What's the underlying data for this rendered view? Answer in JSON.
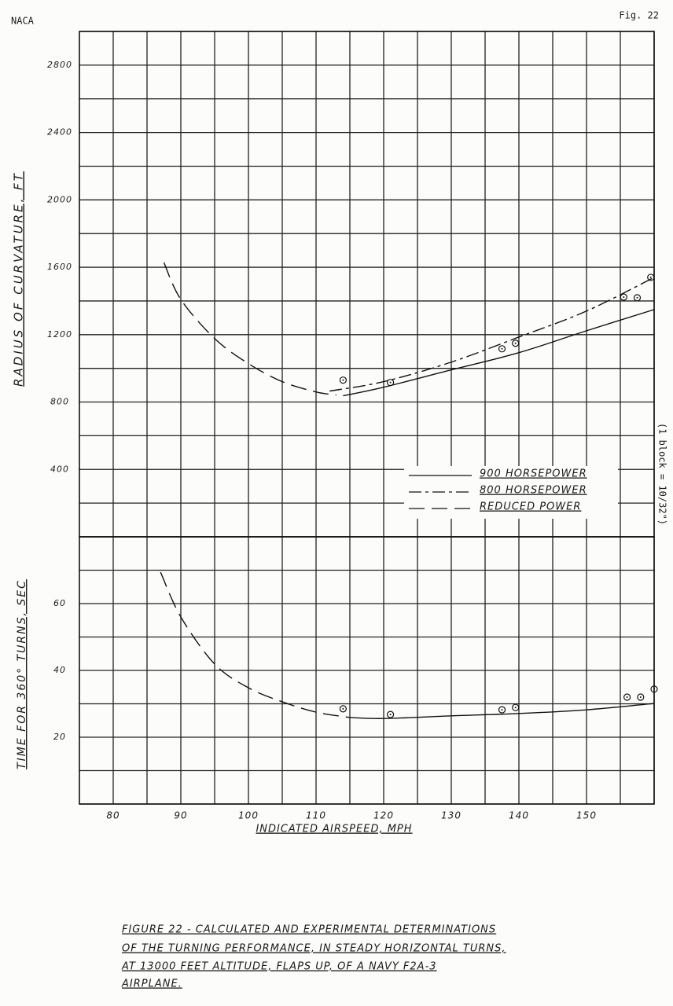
{
  "header": {
    "left": "NACA",
    "right": "Fig. 22"
  },
  "scale_note": "(1 block = 10/32\")",
  "caption": [
    "FIGURE 22 - CALCULATED AND EXPERIMENTAL DETERMINATIONS",
    "OF THE TURNING PERFORMANCE, IN STEADY HORIZONTAL TURNS,",
    "AT 13000 FEET ALTITUDE, FLAPS UP, OF A NAVY F2A-3",
    "AIRPLANE."
  ],
  "chart_data": [
    {
      "type": "line",
      "ylabel": "RADIUS OF CURVATURE, FT",
      "xlim": [
        75,
        160
      ],
      "ylim": [
        0,
        3000
      ],
      "yticks": [
        400,
        800,
        1200,
        1600,
        2000,
        2400,
        2800
      ],
      "grid": true,
      "legend": "right",
      "series": [
        {
          "name": "900 HORSEPOWER",
          "color": "#111111",
          "dash": "solid",
          "x": [
            114,
            120,
            130,
            140,
            150,
            160
          ],
          "values": [
            837,
            888,
            991,
            1093,
            1223,
            1349
          ]
        },
        {
          "name": "800 HORSEPOWER",
          "color": "#111111",
          "dash": "dash-dot",
          "x": [
            112,
            120,
            130,
            140,
            150,
            160
          ],
          "values": [
            865,
            921,
            1037,
            1186,
            1340,
            1540
          ]
        },
        {
          "name": "REDUCED POWER",
          "color": "#111111",
          "dash": "dash",
          "x": [
            87.5,
            90,
            95,
            100,
            105,
            110,
            113
          ],
          "values": [
            1628,
            1409,
            1177,
            1028,
            921,
            860,
            842
          ]
        },
        {
          "type": "scatter",
          "color": "#111111",
          "x": [
            114,
            121,
            137.5,
            139.5,
            155.5,
            157.5,
            159.5
          ],
          "values": [
            930,
            916,
            1116,
            1149,
            1423,
            1419,
            1540
          ]
        }
      ]
    },
    {
      "type": "line",
      "ylabel": "TIME FOR 360° TURNS, SEC",
      "xlabel": "INDICATED AIRSPEED, MPH",
      "xlim": [
        75,
        160
      ],
      "ylim": [
        0,
        80
      ],
      "xticks": [
        80,
        90,
        100,
        110,
        120,
        130,
        140,
        150
      ],
      "yticks": [
        20,
        40,
        60
      ],
      "grid": true,
      "series": [
        {
          "color": "#111111",
          "dash": "solid",
          "x": [
            115,
            120,
            130,
            140,
            150,
            160
          ],
          "values": [
            25.9,
            25.6,
            26.4,
            27.1,
            28.2,
            30.1
          ]
        },
        {
          "color": "#111111",
          "dash": "dash",
          "x": [
            87,
            90,
            95,
            100,
            105,
            110,
            115
          ],
          "values": [
            69.4,
            56,
            41.9,
            34.8,
            30.6,
            27.5,
            25.9
          ]
        },
        {
          "type": "scatter",
          "color": "#111111",
          "x": [
            114,
            121,
            137.5,
            139.5,
            156,
            158,
            160
          ],
          "values": [
            28.5,
            26.8,
            28.2,
            28.9,
            32,
            32,
            34.4
          ]
        }
      ]
    }
  ]
}
